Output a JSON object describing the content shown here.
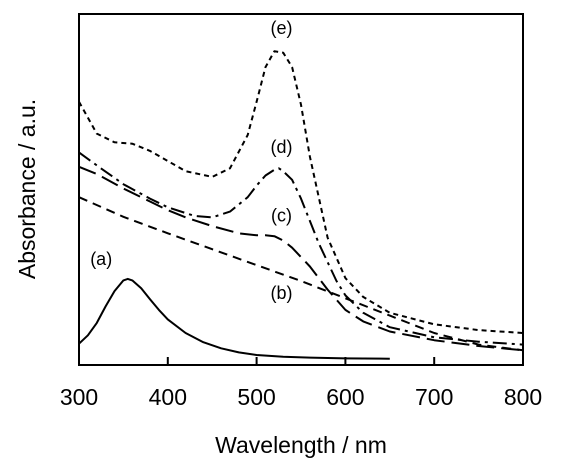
{
  "chart_data": {
    "type": "line",
    "xlabel": "Wavelength / nm",
    "ylabel": "Absorbance / a.u.",
    "xlim": [
      300,
      800
    ],
    "ylim": [
      0,
      1
    ],
    "xticks": [
      300,
      400,
      500,
      600,
      700,
      800
    ],
    "xtick_labels": [
      "300",
      "400",
      "500",
      "600",
      "700",
      "800"
    ],
    "yticks_labeled": false,
    "grid": false,
    "series": [
      {
        "name": "(a)",
        "style": "solid",
        "x": [
          300,
          310,
          320,
          330,
          340,
          350,
          355,
          360,
          370,
          380,
          390,
          400,
          420,
          440,
          460,
          480,
          500,
          530,
          560,
          600,
          650
        ],
        "y": [
          0.053,
          0.082,
          0.125,
          0.182,
          0.235,
          0.272,
          0.277,
          0.272,
          0.245,
          0.207,
          0.17,
          0.137,
          0.09,
          0.058,
          0.037,
          0.023,
          0.014,
          0.008,
          0.005,
          0.002,
          0.001
        ]
      },
      {
        "name": "(b)",
        "style": "dashed",
        "x": [
          300,
          350,
          400,
          450,
          500,
          550,
          600,
          650,
          700,
          750,
          800
        ],
        "y": [
          0.56,
          0.492,
          0.435,
          0.38,
          0.325,
          0.27,
          0.21,
          0.15,
          0.09,
          0.05,
          0.03
        ]
      },
      {
        "name": "(c)",
        "style": "long-dash",
        "x": [
          300,
          320,
          350,
          380,
          400,
          420,
          450,
          480,
          500,
          510,
          520,
          530,
          540,
          560,
          580,
          600,
          620,
          650,
          700,
          750,
          800
        ],
        "y": [
          0.665,
          0.64,
          0.59,
          0.545,
          0.515,
          0.49,
          0.46,
          0.435,
          0.428,
          0.428,
          0.425,
          0.41,
          0.385,
          0.32,
          0.24,
          0.17,
          0.13,
          0.095,
          0.065,
          0.045,
          0.03
        ]
      },
      {
        "name": "(d)",
        "style": "dash-dot",
        "x": [
          300,
          320,
          350,
          380,
          400,
          430,
          450,
          470,
          490,
          500,
          510,
          520,
          525,
          530,
          540,
          550,
          570,
          590,
          600,
          620,
          650,
          700,
          750,
          800
        ],
        "y": [
          0.715,
          0.67,
          0.605,
          0.555,
          0.525,
          0.495,
          0.49,
          0.51,
          0.56,
          0.6,
          0.635,
          0.655,
          0.66,
          0.65,
          0.62,
          0.555,
          0.4,
          0.27,
          0.22,
          0.16,
          0.11,
          0.075,
          0.06,
          0.05
        ]
      },
      {
        "name": "(e)",
        "style": "short-dash",
        "x": [
          300,
          320,
          340,
          360,
          380,
          400,
          420,
          450,
          470,
          490,
          500,
          510,
          520,
          530,
          540,
          550,
          560,
          580,
          600,
          620,
          650,
          700,
          750,
          800
        ],
        "y": [
          0.89,
          0.78,
          0.75,
          0.745,
          0.72,
          0.685,
          0.65,
          0.63,
          0.66,
          0.775,
          0.89,
          1.01,
          1.065,
          1.06,
          1.01,
          0.88,
          0.7,
          0.42,
          0.28,
          0.215,
          0.16,
          0.12,
          0.1,
          0.09
        ]
      }
    ],
    "annotations": [
      {
        "text": "(a)",
        "x": 325,
        "y": 0.325,
        "series": "(a)"
      },
      {
        "text": "(b)",
        "x": 528,
        "y": 0.208,
        "series": "(b)"
      },
      {
        "text": "(c)",
        "x": 528,
        "y": 0.475,
        "series": "(c)"
      },
      {
        "text": "(d)",
        "x": 528,
        "y": 0.712,
        "series": "(d)"
      },
      {
        "text": "(e)",
        "x": 528,
        "y": 1.125,
        "series": "(e)"
      }
    ]
  }
}
